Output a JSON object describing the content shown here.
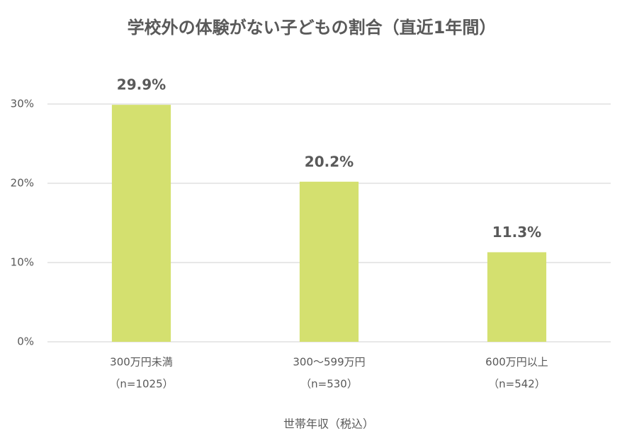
{
  "chart_data": {
    "type": "bar",
    "title": "学校外の体験がない子どもの割合（直近1年間）",
    "x_label": "世帯年収（税込）",
    "categories": [
      [
        "300万円未満",
        "（n=1025）"
      ],
      [
        "300～599万円",
        "（n=530）"
      ],
      [
        "600万円以上",
        "（n=542）"
      ]
    ],
    "values": [
      29.9,
      20.2,
      11.3
    ],
    "value_labels": [
      "29.9%",
      "20.2%",
      "11.3%"
    ],
    "color": "#d4e06f",
    "ylim": [
      0,
      30
    ],
    "yticks": [
      {
        "value": 0,
        "label": "0%"
      },
      {
        "value": 10,
        "label": "10%"
      },
      {
        "value": 20,
        "label": "20%"
      },
      {
        "value": 30,
        "label": "30%"
      }
    ],
    "grid": true
  }
}
